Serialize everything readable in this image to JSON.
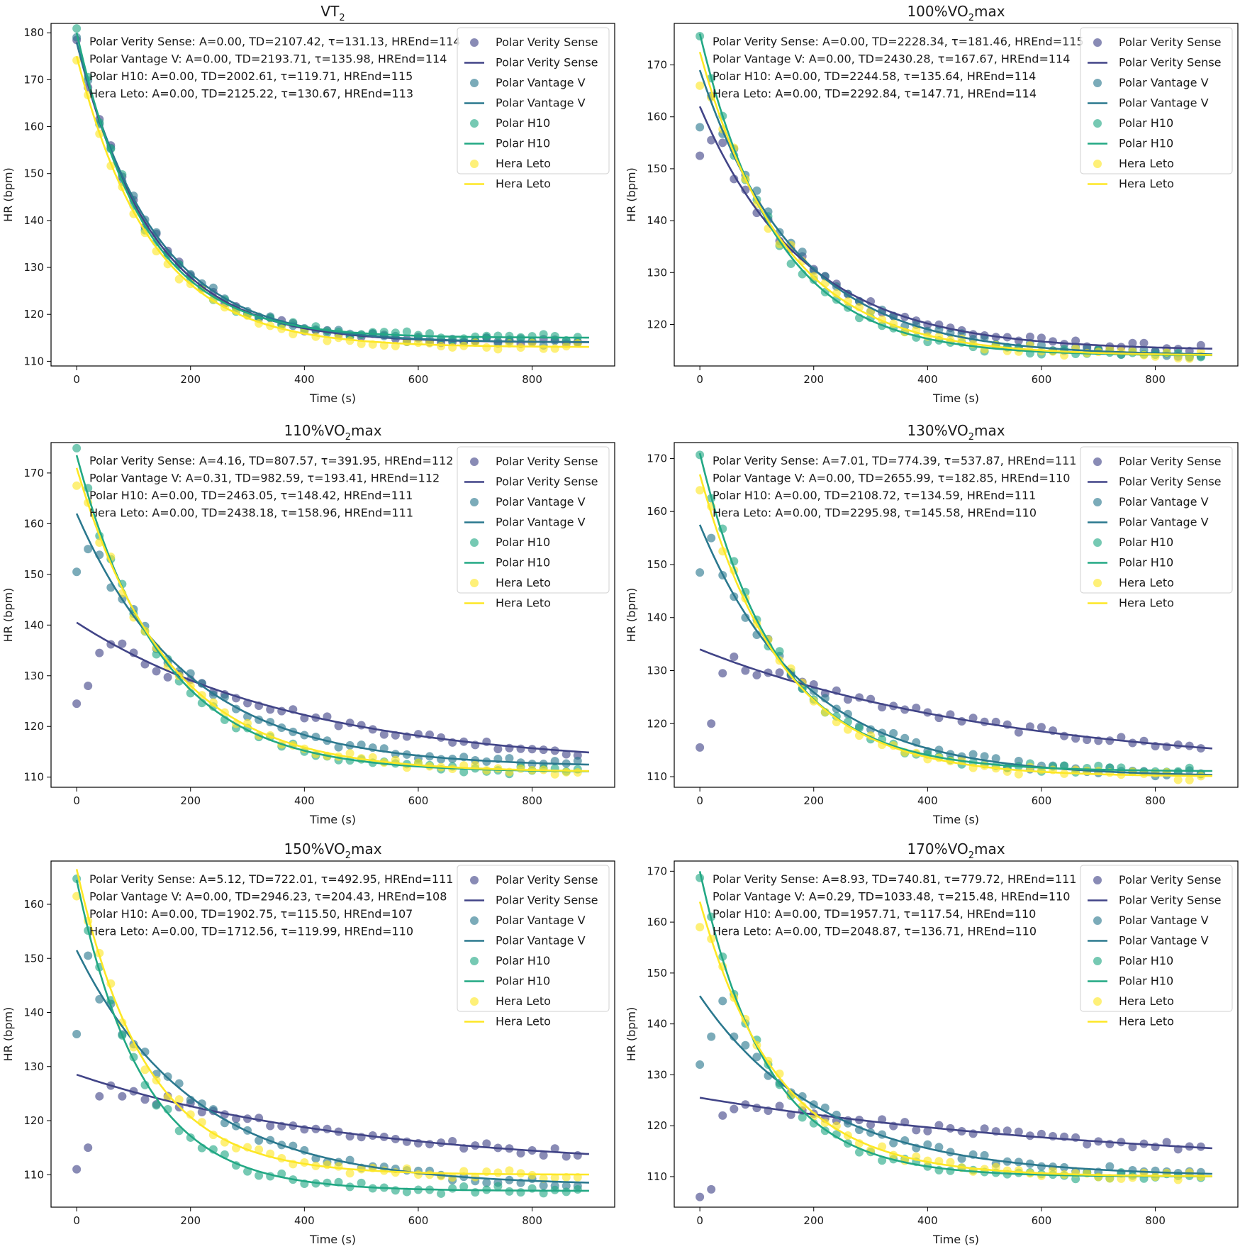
{
  "colors": {
    "Polar Verity Sense": "#414487",
    "Polar Vantage V": "#2a788e",
    "Polar H10": "#22a884",
    "Hera Leto": "#fde725"
  },
  "chart_data": [
    {
      "type": "scatter",
      "title": "VT",
      "title_sub": "2",
      "title_tail": "",
      "xlabel": "Time (s)",
      "ylabel": "HR (bpm)",
      "xlim": [
        -45,
        945
      ],
      "ylim": [
        109,
        182
      ],
      "xticks": [
        0,
        200,
        400,
        600,
        800
      ],
      "yticks": [
        110,
        120,
        130,
        140,
        150,
        160,
        170,
        180
      ],
      "legend_loc": "top-right",
      "series": [
        {
          "name": "Polar Verity Sense",
          "A": 0.0,
          "TD": 2107.42,
          "tau": 131.13,
          "HREnd": 114,
          "start_hr": 178,
          "anomaly": [],
          "annotation": "Polar Verity Sense: A=0.00, TD=2107.42, τ=131.13, HREnd=114"
        },
        {
          "name": "Polar Vantage V",
          "A": 0.0,
          "TD": 2193.71,
          "tau": 135.98,
          "HREnd": 114,
          "start_hr": 178,
          "anomaly": [],
          "annotation": "Polar Vantage V: A=0.00, TD=2193.71, τ=135.98, HREnd=114"
        },
        {
          "name": "Polar H10",
          "A": 0.0,
          "TD": 2002.61,
          "tau": 119.71,
          "HREnd": 115,
          "start_hr": 180,
          "anomaly": [],
          "annotation": "Polar H10: A=0.00, TD=2002.61, τ=119.71, HREnd=115"
        },
        {
          "name": "Hera Leto",
          "A": 0.0,
          "TD": 2125.22,
          "tau": 130.67,
          "HREnd": 113,
          "start_hr": 175,
          "anomaly": [],
          "annotation": "Hera Leto: A=0.00, TD=2125.22, τ=130.67, HREnd=113"
        }
      ]
    },
    {
      "type": "scatter",
      "title": "100%VO",
      "title_sub": "2",
      "title_tail": "max",
      "xlabel": "Time (s)",
      "ylabel": "HR (bpm)",
      "xlim": [
        -45,
        945
      ],
      "ylim": [
        112,
        178
      ],
      "xticks": [
        0,
        200,
        400,
        600,
        800
      ],
      "yticks": [
        120,
        130,
        140,
        150,
        160,
        170
      ],
      "legend_loc": "top-right",
      "series": [
        {
          "name": "Polar Verity Sense",
          "A": 0.0,
          "TD": 2228.34,
          "tau": 181.46,
          "HREnd": 115,
          "start_hr": 162,
          "anomaly": [
            152.5,
            155.5,
            155
          ],
          "annotation": "Polar Verity Sense: A=0.00, TD=2228.34, τ=181.46, HREnd=115"
        },
        {
          "name": "Polar Vantage V",
          "A": 0.0,
          "TD": 2430.28,
          "tau": 167.67,
          "HREnd": 114,
          "start_hr": 169,
          "anomaly": [
            158,
            164
          ],
          "annotation": "Polar Vantage V: A=0.00, TD=2430.28, τ=167.67, HREnd=114"
        },
        {
          "name": "Polar H10",
          "A": 0.0,
          "TD": 2244.58,
          "tau": 135.64,
          "HREnd": 114,
          "start_hr": 176,
          "anomaly": [],
          "annotation": "Polar H10: A=0.00, TD=2244.58, τ=135.64, HREnd=114"
        },
        {
          "name": "Hera Leto",
          "A": 0.0,
          "TD": 2292.84,
          "tau": 147.71,
          "HREnd": 114,
          "start_hr": 172.5,
          "anomaly": [
            166
          ],
          "annotation": "Hera Leto: A=0.00, TD=2292.84, τ=147.71, HREnd=114"
        }
      ]
    },
    {
      "type": "scatter",
      "title": "110%VO",
      "title_sub": "2",
      "title_tail": "max",
      "xlabel": "Time (s)",
      "ylabel": "HR (bpm)",
      "xlim": [
        -45,
        945
      ],
      "ylim": [
        108,
        176
      ],
      "xticks": [
        0,
        200,
        400,
        600,
        800
      ],
      "yticks": [
        110,
        120,
        130,
        140,
        150,
        160,
        170
      ],
      "legend_loc": "top-right",
      "series": [
        {
          "name": "Polar Verity Sense",
          "A": 4.16,
          "TD": 807.57,
          "tau": 391.95,
          "HREnd": 112,
          "start_hr": 140.5,
          "anomaly": [
            124.5,
            128,
            134.5
          ],
          "annotation": "Polar Verity Sense: A=4.16, TD=807.57, τ=391.95, HREnd=112"
        },
        {
          "name": "Polar Vantage V",
          "A": 0.31,
          "TD": 982.59,
          "tau": 193.41,
          "HREnd": 112,
          "start_hr": 162,
          "anomaly": [
            150.5,
            155
          ],
          "annotation": "Polar Vantage V: A=0.31, TD=982.59, τ=193.41, HREnd=112"
        },
        {
          "name": "Polar H10",
          "A": 0.0,
          "TD": 2463.05,
          "tau": 148.42,
          "HREnd": 111,
          "start_hr": 173.5,
          "anomaly": [],
          "annotation": "Polar H10: A=0.00, TD=2463.05, τ=148.42, HREnd=111"
        },
        {
          "name": "Hera Leto",
          "A": 0.0,
          "TD": 2438.18,
          "tau": 158.96,
          "HREnd": 111,
          "start_hr": 171,
          "anomaly": [
            167.5
          ],
          "annotation": "Hera Leto: A=0.00, TD=2438.18, τ=158.96, HREnd=111"
        }
      ]
    },
    {
      "type": "scatter",
      "title": "130%VO",
      "title_sub": "2",
      "title_tail": "max",
      "xlabel": "Time (s)",
      "ylabel": "HR (bpm)",
      "xlim": [
        -45,
        945
      ],
      "ylim": [
        108,
        173
      ],
      "xticks": [
        0,
        200,
        400,
        600,
        800
      ],
      "yticks": [
        110,
        120,
        130,
        140,
        150,
        160,
        170
      ],
      "legend_loc": "top-right",
      "series": [
        {
          "name": "Polar Verity Sense",
          "A": 7.01,
          "TD": 774.39,
          "tau": 537.87,
          "HREnd": 111,
          "start_hr": 134,
          "anomaly": [
            115.5,
            120,
            129.5
          ],
          "annotation": "Polar Verity Sense: A=7.01, TD=774.39, τ=537.87, HREnd=111"
        },
        {
          "name": "Polar Vantage V",
          "A": 0.0,
          "TD": 2655.99,
          "tau": 182.85,
          "HREnd": 110,
          "start_hr": 157.5,
          "anomaly": [
            148.5,
            155
          ],
          "annotation": "Polar Vantage V: A=0.00, TD=2655.99, τ=182.85, HREnd=110"
        },
        {
          "name": "Polar H10",
          "A": 0.0,
          "TD": 2108.72,
          "tau": 134.59,
          "HREnd": 111,
          "start_hr": 171,
          "anomaly": [],
          "annotation": "Polar H10: A=0.00, TD=2108.72, τ=134.59, HREnd=111"
        },
        {
          "name": "Hera Leto",
          "A": 0.0,
          "TD": 2295.98,
          "tau": 145.58,
          "HREnd": 110,
          "start_hr": 167,
          "anomaly": [
            164
          ],
          "annotation": "Hera Leto: A=0.00, TD=2295.98, τ=145.58, HREnd=110"
        }
      ]
    },
    {
      "type": "scatter",
      "title": "150%VO",
      "title_sub": "2",
      "title_tail": "max",
      "xlabel": "Time (s)",
      "ylabel": "HR (bpm)",
      "xlim": [
        -45,
        945
      ],
      "ylim": [
        104,
        168
      ],
      "xticks": [
        0,
        200,
        400,
        600,
        800
      ],
      "yticks": [
        110,
        120,
        130,
        140,
        150,
        160
      ],
      "legend_loc": "top-right",
      "series": [
        {
          "name": "Polar Verity Sense",
          "A": 5.12,
          "TD": 722.01,
          "tau": 492.95,
          "HREnd": 111,
          "start_hr": 128.5,
          "anomaly": [
            111,
            115,
            124.5
          ],
          "annotation": "Polar Verity Sense: A=5.12, TD=722.01, τ=492.95, HREnd=111"
        },
        {
          "name": "Polar Vantage V",
          "A": 0.0,
          "TD": 2946.23,
          "tau": 204.43,
          "HREnd": 108,
          "start_hr": 151.5,
          "anomaly": [
            136,
            150.5
          ],
          "annotation": "Polar Vantage V: A=0.00, TD=2946.23, τ=204.43, HREnd=108"
        },
        {
          "name": "Polar H10",
          "A": 0.0,
          "TD": 1902.75,
          "tau": 115.5,
          "HREnd": 107,
          "start_hr": 164.5,
          "anomaly": [],
          "annotation": "Polar H10: A=0.00, TD=1902.75, τ=115.50, HREnd=107"
        },
        {
          "name": "Hera Leto",
          "A": 0.0,
          "TD": 1712.56,
          "tau": 119.99,
          "HREnd": 110,
          "start_hr": 166.5,
          "anomaly": [
            161.5
          ],
          "annotation": "Hera Leto: A=0.00, TD=1712.56, τ=119.99, HREnd=110"
        }
      ]
    },
    {
      "type": "scatter",
      "title": "170%VO",
      "title_sub": "2",
      "title_tail": "max",
      "xlabel": "Time (s)",
      "ylabel": "HR (bpm)",
      "xlim": [
        -45,
        945
      ],
      "ylim": [
        104,
        172
      ],
      "xticks": [
        0,
        200,
        400,
        600,
        800
      ],
      "yticks": [
        110,
        120,
        130,
        140,
        150,
        160,
        170
      ],
      "legend_loc": "top-right",
      "series": [
        {
          "name": "Polar Verity Sense",
          "A": 8.93,
          "TD": 740.81,
          "tau": 779.72,
          "HREnd": 111,
          "start_hr": 125.5,
          "anomaly": [
            106,
            107.5,
            122
          ],
          "annotation": "Polar Verity Sense: A=8.93, TD=740.81, τ=779.72, HREnd=111"
        },
        {
          "name": "Polar Vantage V",
          "A": 0.29,
          "TD": 1033.48,
          "tau": 215.48,
          "HREnd": 110,
          "start_hr": 145.5,
          "anomaly": [
            132,
            137.5,
            144.5
          ],
          "annotation": "Polar Vantage V: A=0.29, TD=1033.48, τ=215.48, HREnd=110"
        },
        {
          "name": "Polar H10",
          "A": 0.0,
          "TD": 1957.71,
          "tau": 117.54,
          "HREnd": 110,
          "start_hr": 170,
          "anomaly": [],
          "annotation": "Polar H10: A=0.00, TD=1957.71, τ=117.54, HREnd=110"
        },
        {
          "name": "Hera Leto",
          "A": 0.0,
          "TD": 2048.87,
          "tau": 136.71,
          "HREnd": 110,
          "start_hr": 164,
          "anomaly": [
            159
          ],
          "annotation": "Hera Leto: A=0.00, TD=2048.87, τ=136.71, HREnd=110"
        }
      ]
    }
  ]
}
